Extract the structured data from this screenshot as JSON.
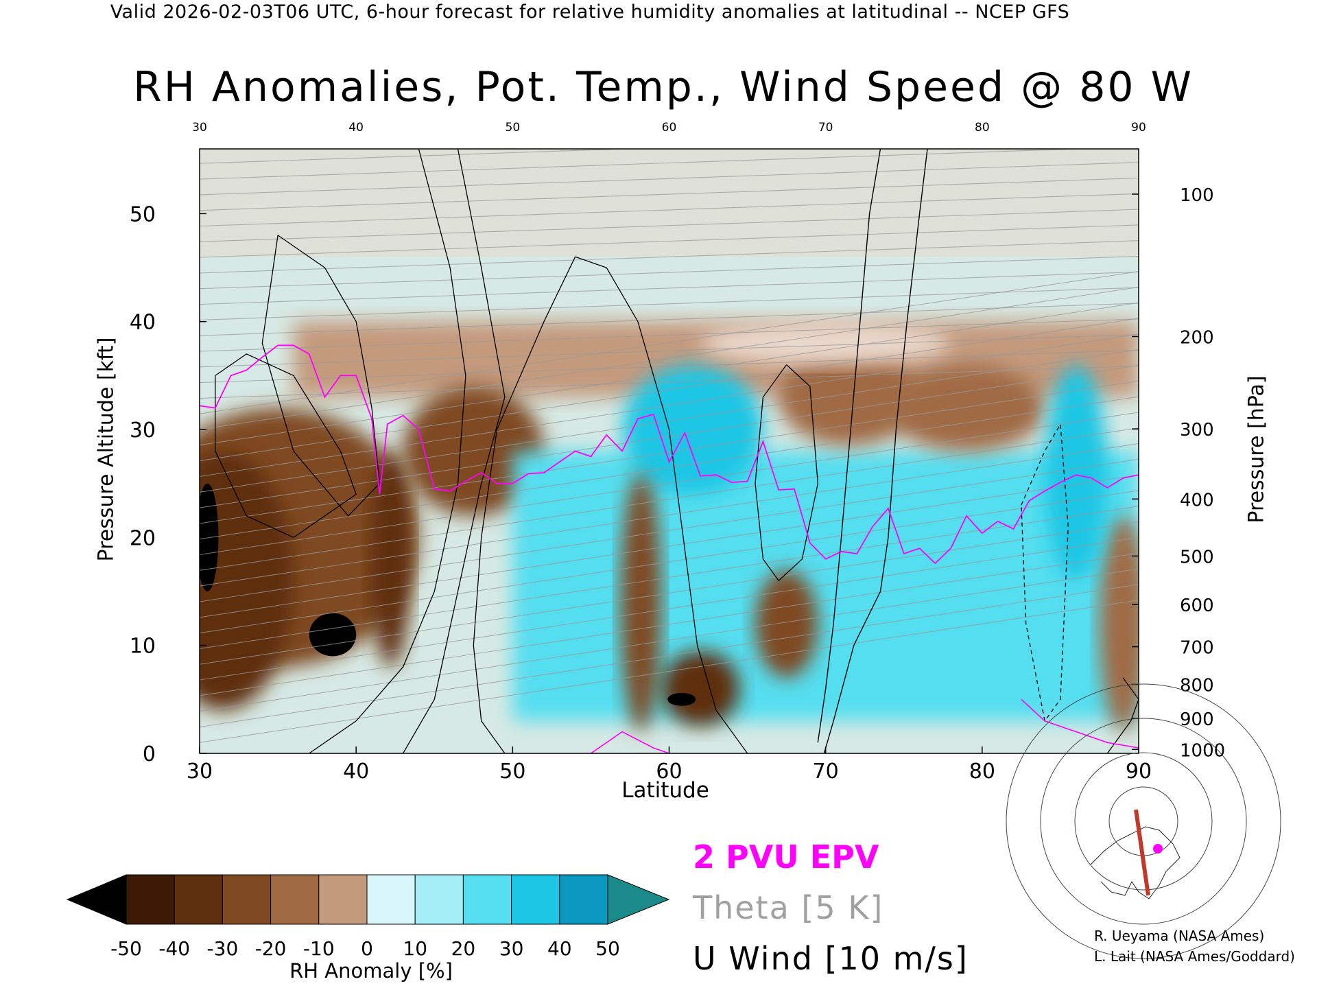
{
  "header": {
    "valid_line": "Valid 2026-02-03T06 UTC, 6-hour forecast for relative humidity anomalies at latitudinal -- NCEP GFS",
    "title": "RH Anomalies, Pot. Temp., Wind Speed @ 80 W"
  },
  "axes": {
    "x_label": "Latitude",
    "left_label": "Pressure Altitude [kft]",
    "right_label": "Pressure [hPa]"
  },
  "legend": {
    "epv_label": "2 PVU EPV",
    "theta_label": "Theta [5 K]",
    "wind_label": "U Wind [10 m/s]",
    "colorbar_label": "RH Anomaly [%]",
    "colors": {
      "epv": "#ff00ff",
      "theta": "#a0a0a0",
      "wind": "#000000"
    }
  },
  "credits": {
    "line1": "R. Ueyama (NASA Ames)",
    "line2": "L. Lait (NASA Ames/Goddard)"
  },
  "locator_map": {
    "description_icon": "polar-map-icon",
    "section_color": "#c0392b",
    "marker_color": "#ff00ff"
  },
  "chart_data": {
    "type": "heatmap",
    "x_ticks": [
      "30",
      "40",
      "50",
      "60",
      "70",
      "80",
      "90"
    ],
    "y_ticks_kft": [
      "0",
      "10",
      "20",
      "30",
      "40",
      "50"
    ],
    "y_ticks_hpa": [
      "100",
      "200",
      "300",
      "400",
      "500",
      "600",
      "700",
      "800",
      "900",
      "1000"
    ],
    "xlim": [
      30,
      90
    ],
    "ylim_kft": [
      0,
      56
    ],
    "colorbar": {
      "ticks": [
        "-50",
        "-40",
        "-30",
        "-20",
        "-10",
        "0",
        "10",
        "20",
        "30",
        "40",
        "50"
      ],
      "colors": [
        "#3d1a05",
        "#5e2f0e",
        "#7f4a22",
        "#a06a45",
        "#c49a7d",
        "#ead8cc",
        "#d9f7fb",
        "#a4eef8",
        "#55def0",
        "#1cc6e4",
        "#0a98be"
      ],
      "under_color": "#000000",
      "over_color": "#1a8a8a"
    },
    "epv_2pvu_kft": [
      [
        30,
        32.2
      ],
      [
        31,
        32
      ],
      [
        32,
        35
      ],
      [
        33,
        35.5
      ],
      [
        34,
        36.7
      ],
      [
        35,
        37.8
      ],
      [
        36,
        37.8
      ],
      [
        37,
        37
      ],
      [
        38,
        33
      ],
      [
        39,
        35
      ],
      [
        40,
        35
      ],
      [
        41,
        31
      ],
      [
        41.5,
        24
      ],
      [
        42,
        30.5
      ],
      [
        43,
        31.3
      ],
      [
        44,
        30
      ],
      [
        45,
        24.5
      ],
      [
        46,
        24.3
      ],
      [
        47,
        25.2
      ],
      [
        48,
        26
      ],
      [
        49,
        25
      ],
      [
        50,
        25
      ],
      [
        51,
        25.9
      ],
      [
        52,
        26
      ],
      [
        53,
        27
      ],
      [
        54,
        28
      ],
      [
        55,
        27.5
      ],
      [
        56,
        29.5
      ],
      [
        57,
        28
      ],
      [
        58,
        31
      ],
      [
        59,
        31.4
      ],
      [
        60,
        27
      ],
      [
        61,
        29.7
      ],
      [
        62,
        25.7
      ],
      [
        63,
        25.8
      ],
      [
        64,
        25.1
      ],
      [
        65,
        25.2
      ],
      [
        66,
        28.9
      ],
      [
        67,
        24.4
      ],
      [
        68,
        24.5
      ],
      [
        69,
        19.5
      ],
      [
        70,
        18
      ],
      [
        71,
        18.7
      ],
      [
        72,
        18.5
      ],
      [
        73,
        21
      ],
      [
        74,
        22.7
      ],
      [
        75,
        18.5
      ],
      [
        76,
        19
      ],
      [
        77,
        17.6
      ],
      [
        78,
        19
      ],
      [
        79,
        22
      ],
      [
        80,
        20.4
      ],
      [
        81,
        21.5
      ],
      [
        82,
        20.8
      ],
      [
        83,
        23.4
      ],
      [
        84,
        24.3
      ],
      [
        85,
        25.1
      ],
      [
        86,
        25.8
      ],
      [
        87,
        25.5
      ],
      [
        88,
        24.6
      ],
      [
        89,
        25.5
      ],
      [
        90,
        25.8
      ]
    ],
    "zero_wind_kft": [
      [
        76.5,
        56
      ],
      [
        76,
        50
      ],
      [
        75.2,
        40
      ],
      [
        74.5,
        30
      ],
      [
        74,
        20
      ],
      [
        73.5,
        15
      ],
      [
        71.8,
        10
      ],
      [
        70.5,
        3
      ],
      [
        69.9,
        0
      ]
    ],
    "wind_10_kft": [
      [
        73.5,
        56
      ],
      [
        72.8,
        50
      ],
      [
        72.2,
        40
      ],
      [
        71.6,
        30
      ],
      [
        71,
        20
      ],
      [
        70.5,
        12
      ],
      [
        70,
        6
      ],
      [
        69.5,
        1
      ]
    ]
  }
}
